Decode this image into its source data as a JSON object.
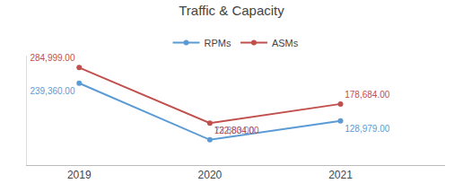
{
  "chart_data": {
    "type": "line",
    "title": "Traffic & Capacity",
    "x": [
      2019,
      2020,
      2021
    ],
    "series": [
      {
        "name": "RPMs",
        "color": "#5B9BD5",
        "values": [
          239360,
          73883,
          128979
        ],
        "value_labels": [
          "239,360.00",
          "73,883.00",
          "128,979.00"
        ]
      },
      {
        "name": "ASMs",
        "color": "#C0504D",
        "values": [
          284999,
          122804,
          178684
        ],
        "value_labels": [
          "284,999.00",
          "122,804.00",
          "178,684.00"
        ]
      }
    ],
    "xlim": [
      2018.6,
      2021.8
    ],
    "xticks": [
      2019,
      2020,
      2021
    ],
    "ylim": [
      0,
      320000
    ],
    "grid": false,
    "legend": "top",
    "data_labels": true,
    "tick_labels": "x",
    "marker": "circle",
    "line_style": "solid"
  }
}
